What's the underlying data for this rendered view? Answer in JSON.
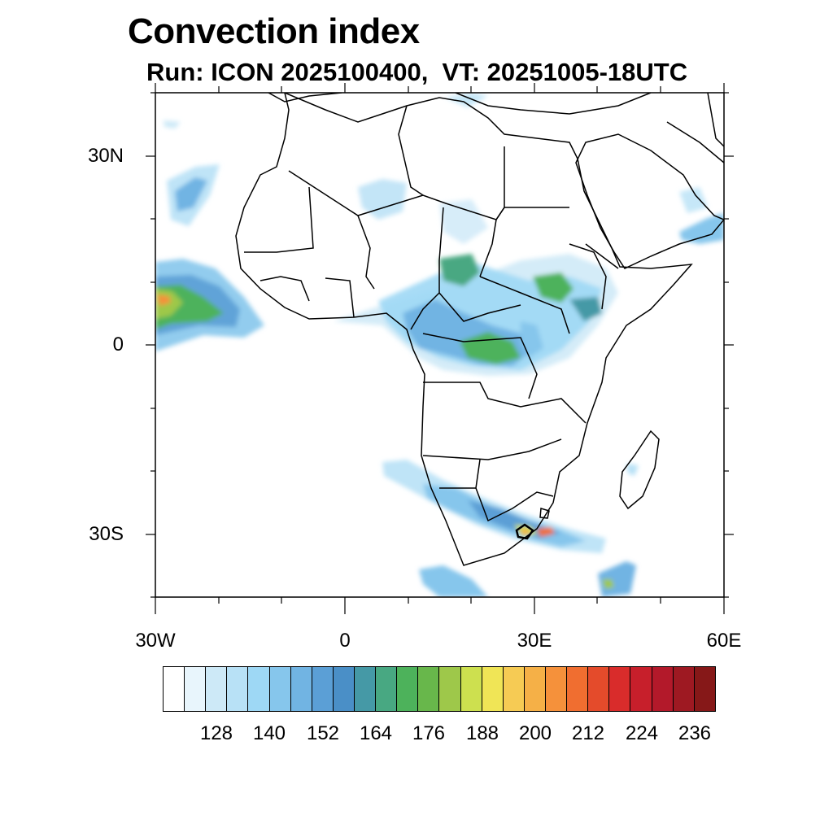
{
  "header": {
    "title": "Convection index",
    "subtitle": "Run: ICON 2025100400,  VT: 20251005-18UTC"
  },
  "map": {
    "region": "Africa",
    "lon_range": [
      -30,
      60
    ],
    "lat_range": [
      -40,
      40
    ],
    "lat_ticks": [
      {
        "value": 30,
        "label": "30N"
      },
      {
        "value": 0,
        "label": "0"
      },
      {
        "value": -30,
        "label": "30S"
      }
    ],
    "lon_ticks": [
      {
        "value": -30,
        "label": "30W"
      },
      {
        "value": 0,
        "label": "0"
      },
      {
        "value": 30,
        "label": "30E"
      },
      {
        "value": 60,
        "label": "60E"
      }
    ],
    "field": "Convection index",
    "features": [
      {
        "name": "atlantic-itcz",
        "level": 178
      },
      {
        "name": "central-africa-convection",
        "level": 166
      },
      {
        "name": "ethiopia-convection",
        "level": 160
      },
      {
        "name": "southern-africa-band",
        "level": 212
      },
      {
        "name": "southern-ocean-band",
        "level": 150
      },
      {
        "name": "arabian-sea-patch",
        "level": 148
      }
    ]
  },
  "colorbar": {
    "colors": [
      "#ffffff",
      "#e8f5fc",
      "#cde9f7",
      "#b8e1f6",
      "#9ed8f5",
      "#86c6ec",
      "#71b4e3",
      "#5b9fd6",
      "#4a8fc7",
      "#4599a6",
      "#48a882",
      "#4db25b",
      "#68b74b",
      "#9ec84a",
      "#cde04f",
      "#f0e556",
      "#f6cb54",
      "#f5b047",
      "#f5913b",
      "#f06e30",
      "#e44b2b",
      "#d92c2b",
      "#c71f2b",
      "#b3192a",
      "#9e1922",
      "#861818"
    ],
    "tick_labels": [
      "128",
      "140",
      "152",
      "164",
      "176",
      "188",
      "200",
      "212",
      "224",
      "236"
    ]
  }
}
